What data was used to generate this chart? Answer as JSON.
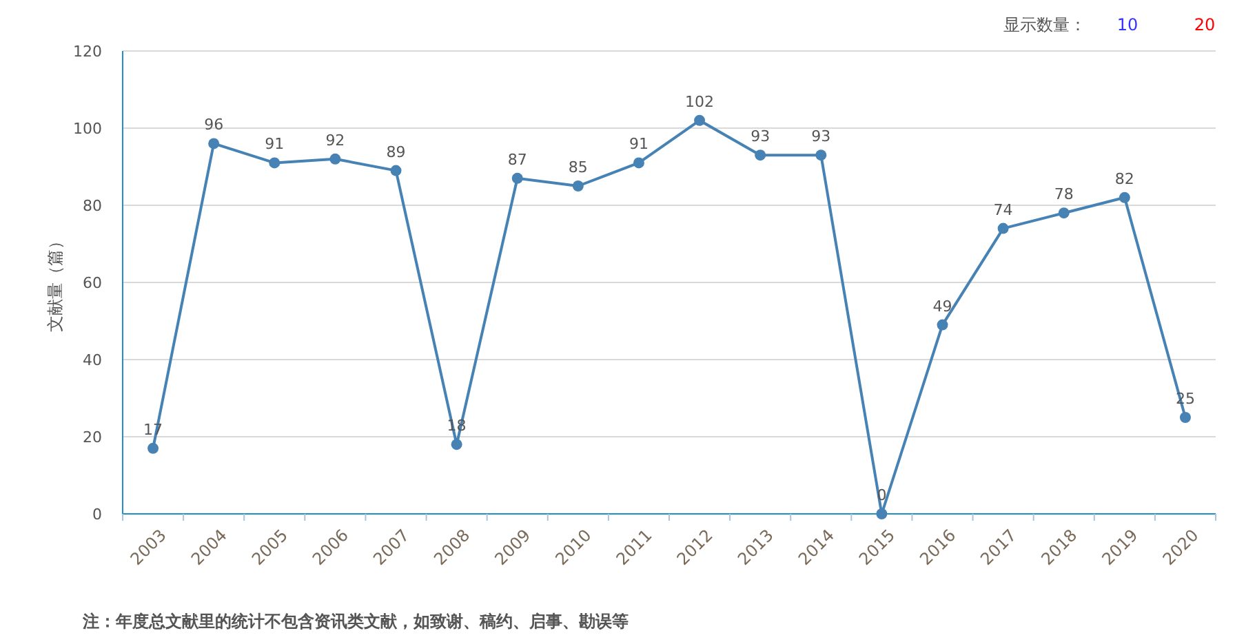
{
  "chart_data": {
    "type": "line",
    "ylabel": "文献量（篇）",
    "categories": [
      "2003",
      "2004",
      "2005",
      "2006",
      "2007",
      "2008",
      "2009",
      "2010",
      "2011",
      "2012",
      "2013",
      "2014",
      "2015",
      "2016",
      "2017",
      "2018",
      "2019",
      "2020"
    ],
    "series": [
      {
        "color": "#4682b4",
        "values": [
          17,
          96,
          91,
          92,
          89,
          18,
          87,
          85,
          91,
          102,
          93,
          93,
          0,
          49,
          74,
          78,
          82,
          25
        ]
      }
    ],
    "ylim": [
      0,
      120
    ],
    "yticks": [
      0,
      20,
      40,
      60,
      80,
      100,
      120
    ],
    "grid": "y",
    "marker": "circle",
    "line_style": "solid",
    "data_labels": true,
    "annotations": [
      "显示数量：",
      "10",
      "20",
      "注：年度总文献里的统计不包含资讯类文献，如致谢、稿约、启事、勘误等"
    ]
  }
}
